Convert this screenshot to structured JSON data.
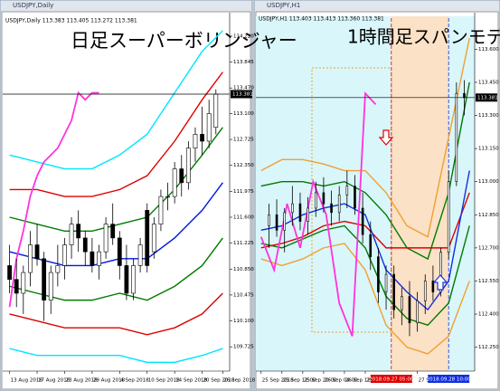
{
  "chart_data": [
    {
      "type": "candlestick",
      "window_title": "USDJPY,Daily",
      "title": "日足スーパーボリンジャー",
      "ohlc_label": "USDJPY,Daily  113.383 113.405 113.272 113.381",
      "ylim": [
        109.4,
        114.35
      ],
      "yticks": [
        {
          "value": 114.22,
          "label": "114.220"
        },
        {
          "value": 113.845,
          "label": "113.845"
        },
        {
          "value": 113.47,
          "label": "113.470"
        },
        {
          "value": 113.1,
          "label": "113.100"
        },
        {
          "value": 112.725,
          "label": "112.725"
        },
        {
          "value": 112.35,
          "label": "112.350"
        },
        {
          "value": 111.975,
          "label": "111.975"
        },
        {
          "value": 111.6,
          "label": "111.600"
        },
        {
          "value": 111.225,
          "label": "111.225"
        },
        {
          "value": 110.85,
          "label": "110.850"
        },
        {
          "value": 110.475,
          "label": "110.475"
        },
        {
          "value": 110.1,
          "label": "110.100"
        },
        {
          "value": 109.725,
          "label": "109.725"
        }
      ],
      "xlim": [
        -1,
        32
      ],
      "xticks": [
        {
          "value": 0,
          "label": "13 Aug 2018"
        },
        {
          "value": 4,
          "label": "17 Aug 2018"
        },
        {
          "value": 8,
          "label": "23 Aug 2018"
        },
        {
          "value": 12,
          "label": "29 Aug 2018"
        },
        {
          "value": 16,
          "label": "4 Sep 2018"
        },
        {
          "value": 20,
          "label": "10 Sep 2018"
        },
        {
          "value": 24,
          "label": "14 Sep 2018"
        },
        {
          "value": 28,
          "label": "20 Sep 2018"
        },
        {
          "value": 31,
          "label": "26 Sep 2018"
        }
      ],
      "current_price": 113.381,
      "candles": {
        "x": [
          0,
          1,
          2,
          3,
          4,
          5,
          6,
          7,
          8,
          9,
          10,
          11,
          12,
          13,
          14,
          15,
          16,
          17,
          18,
          19,
          20,
          21,
          22,
          23,
          24,
          25,
          26,
          27,
          28,
          29,
          30
        ],
        "open": [
          110.9,
          110.7,
          110.5,
          110.8,
          111.2,
          111.0,
          110.4,
          110.8,
          110.9,
          111.2,
          111.5,
          111.3,
          111.1,
          110.9,
          111.1,
          111.5,
          111.3,
          110.9,
          110.5,
          110.9,
          111.7,
          111.1,
          111.5,
          111.9,
          111.9,
          112.3,
          112.1,
          112.6,
          112.8,
          112.7,
          112.9
        ],
        "high": [
          111.2,
          111.0,
          110.9,
          111.4,
          111.5,
          111.1,
          110.9,
          111.2,
          111.3,
          111.6,
          111.7,
          111.4,
          111.3,
          111.2,
          111.6,
          111.8,
          111.4,
          111.2,
          111.0,
          111.3,
          111.8,
          111.6,
          112.0,
          112.1,
          112.4,
          112.5,
          112.7,
          112.9,
          113.2,
          113.3,
          113.45
        ],
        "low": [
          110.5,
          110.3,
          110.2,
          110.6,
          110.9,
          110.1,
          110.2,
          110.6,
          110.7,
          111.0,
          111.1,
          110.9,
          110.8,
          110.7,
          111.0,
          111.2,
          110.7,
          110.4,
          110.4,
          110.8,
          110.8,
          111.0,
          111.4,
          111.7,
          111.8,
          111.9,
          112.0,
          112.4,
          112.5,
          112.6,
          112.8
        ],
        "close": [
          110.7,
          110.5,
          110.8,
          111.2,
          111.0,
          110.4,
          110.8,
          110.9,
          111.2,
          111.5,
          111.3,
          111.1,
          110.9,
          111.1,
          111.5,
          111.3,
          110.9,
          110.5,
          110.9,
          111.2,
          110.9,
          111.5,
          111.9,
          111.9,
          112.3,
          112.1,
          112.6,
          112.8,
          112.7,
          113.1,
          113.38
        ]
      },
      "series": [
        {
          "color": "#00e5ff",
          "x": [
            0,
            4,
            8,
            12,
            16,
            20,
            24,
            28,
            31
          ],
          "values": [
            112.5,
            112.4,
            112.3,
            112.3,
            112.5,
            112.8,
            113.4,
            114.0,
            114.3
          ]
        },
        {
          "color": "#e00000",
          "x": [
            0,
            4,
            8,
            12,
            16,
            20,
            24,
            28,
            31
          ],
          "values": [
            112.0,
            112.0,
            111.9,
            111.9,
            112.0,
            112.2,
            112.7,
            113.3,
            113.7
          ]
        },
        {
          "color": "#007a00",
          "x": [
            0,
            4,
            8,
            12,
            16,
            20,
            24,
            28,
            31
          ],
          "values": [
            111.6,
            111.5,
            111.4,
            111.4,
            111.5,
            111.6,
            112.0,
            112.5,
            112.9
          ]
        },
        {
          "color": "#0018e0",
          "x": [
            0,
            4,
            8,
            12,
            16,
            20,
            24,
            28,
            31
          ],
          "values": [
            111.1,
            111.0,
            110.9,
            110.9,
            111.0,
            111.0,
            111.3,
            111.7,
            112.1
          ]
        },
        {
          "color": "#007a00",
          "x": [
            0,
            4,
            8,
            12,
            16,
            20,
            24,
            28,
            31
          ],
          "values": [
            110.6,
            110.5,
            110.4,
            110.4,
            110.5,
            110.4,
            110.6,
            110.9,
            111.3
          ]
        },
        {
          "color": "#e00000",
          "x": [
            0,
            4,
            8,
            12,
            16,
            20,
            24,
            28,
            31
          ],
          "values": [
            110.2,
            110.1,
            110.0,
            110.0,
            110.0,
            109.9,
            110.0,
            110.2,
            110.5
          ]
        },
        {
          "color": "#00e5ff",
          "x": [
            0,
            4,
            8,
            12,
            16,
            20,
            24,
            28,
            31
          ],
          "values": [
            109.7,
            109.6,
            109.6,
            109.6,
            109.6,
            109.5,
            109.5,
            109.6,
            109.7
          ]
        },
        {
          "color": "#ff33dd",
          "x": [
            0,
            1,
            2,
            3,
            4,
            5,
            6,
            7,
            8,
            9,
            10,
            11,
            12,
            13
          ],
          "values": [
            110.3,
            111.0,
            111.4,
            111.9,
            112.2,
            112.4,
            112.5,
            112.6,
            112.8,
            113.0,
            113.4,
            113.3,
            113.4,
            113.4
          ]
        }
      ]
    },
    {
      "type": "candlestick",
      "window_title": "USDJPY,H1",
      "title": "1時間足スパンモデル",
      "ohlc_label": "USDJPY,H1  113.403 113.413 113.360 113.381",
      "ylim": [
        112.15,
        113.7
      ],
      "yticks": [
        {
          "value": 113.6,
          "label": "113.600"
        },
        {
          "value": 113.45,
          "label": "113.450"
        },
        {
          "value": 113.3,
          "label": "113.300"
        },
        {
          "value": 113.15,
          "label": "113.150"
        },
        {
          "value": 113.0,
          "label": "113.000"
        },
        {
          "value": 112.85,
          "label": "112.850"
        },
        {
          "value": 112.7,
          "label": "112.700"
        },
        {
          "value": 112.55,
          "label": "112.550"
        },
        {
          "value": 112.4,
          "label": "112.400"
        },
        {
          "value": 112.25,
          "label": "112.250"
        }
      ],
      "xlim": [
        -2,
        82
      ],
      "xticks": [
        {
          "value": 0,
          "label": "25 Sep 2018"
        },
        {
          "value": 8,
          "label": "25 Sep 12:00"
        },
        {
          "value": 16,
          "label": "25 Sep 20:00"
        },
        {
          "value": 24,
          "label": "26 Sep 04:00"
        },
        {
          "value": 32,
          "label": "26 Sep 12:00"
        },
        {
          "value": 40,
          "label": "26 Sep 20:00"
        },
        {
          "value": 60,
          "label": "27 Sep 20:00"
        }
      ],
      "markers": [
        {
          "x": 50,
          "label": "2018.09.27 05:00",
          "color": "#e00000"
        },
        {
          "x": 72,
          "label": "2018.09.28 10:00",
          "color": "#1030e0"
        }
      ],
      "current_price": 113.381,
      "candles": {
        "x": [
          3,
          6,
          9,
          12,
          15,
          18,
          21,
          24,
          27,
          30,
          33,
          36,
          39,
          42,
          45,
          48,
          51,
          54,
          57,
          60,
          63,
          66,
          69,
          72,
          75,
          78
        ],
        "open": [
          112.8,
          112.85,
          112.78,
          112.86,
          112.9,
          112.82,
          112.88,
          112.95,
          112.9,
          112.86,
          112.94,
          112.98,
          112.88,
          112.76,
          112.66,
          112.5,
          112.58,
          112.42,
          112.48,
          112.36,
          112.46,
          112.55,
          112.5,
          112.68,
          113.0,
          113.4
        ],
        "high": [
          112.9,
          112.92,
          112.88,
          112.98,
          112.95,
          112.93,
          113.0,
          113.02,
          112.96,
          112.98,
          113.05,
          113.03,
          112.95,
          112.82,
          112.7,
          112.62,
          112.62,
          112.52,
          112.55,
          112.5,
          112.58,
          112.62,
          112.7,
          113.05,
          113.45,
          113.46
        ],
        "low": [
          112.7,
          112.75,
          112.68,
          112.8,
          112.78,
          112.76,
          112.84,
          112.86,
          112.8,
          112.82,
          112.88,
          112.85,
          112.72,
          112.6,
          112.45,
          112.42,
          112.38,
          112.35,
          112.3,
          112.32,
          112.4,
          112.46,
          112.48,
          112.65,
          112.98,
          113.3
        ],
        "close": [
          112.85,
          112.78,
          112.86,
          112.9,
          112.82,
          112.88,
          112.95,
          112.9,
          112.86,
          112.94,
          112.98,
          112.88,
          112.76,
          112.66,
          112.5,
          112.58,
          112.42,
          112.48,
          112.36,
          112.46,
          112.55,
          112.5,
          112.68,
          113.0,
          113.4,
          113.38
        ]
      },
      "series": [
        {
          "color": "#f0a030",
          "x": [
            0,
            8,
            16,
            24,
            32,
            40,
            48,
            56,
            64,
            72,
            80
          ],
          "values": [
            113.05,
            113.1,
            113.1,
            113.08,
            113.05,
            113.05,
            112.95,
            112.8,
            112.75,
            113.2,
            113.65
          ]
        },
        {
          "color": "#f0a030",
          "x": [
            0,
            8,
            16,
            24,
            32,
            40,
            48,
            56,
            64,
            72,
            80
          ],
          "values": [
            112.65,
            112.62,
            112.65,
            112.7,
            112.72,
            112.6,
            112.35,
            112.25,
            112.22,
            112.3,
            112.55
          ]
        },
        {
          "color": "#007a00",
          "x": [
            0,
            8,
            16,
            24,
            32,
            40,
            48,
            56,
            64,
            72,
            80
          ],
          "values": [
            112.98,
            113.0,
            113.0,
            112.98,
            113.0,
            112.95,
            112.85,
            112.7,
            112.65,
            112.95,
            113.45
          ]
        },
        {
          "color": "#007a00",
          "x": [
            0,
            8,
            16,
            24,
            32,
            40,
            48,
            56,
            64,
            72,
            80
          ],
          "values": [
            112.72,
            112.7,
            112.74,
            112.78,
            112.8,
            112.7,
            112.48,
            112.38,
            112.35,
            112.45,
            112.8
          ]
        },
        {
          "color": "#e00000",
          "x": [
            0,
            8,
            16,
            24,
            32,
            40,
            48,
            56,
            64,
            72,
            80
          ],
          "values": [
            112.7,
            112.72,
            112.75,
            112.8,
            112.82,
            112.8,
            112.7,
            112.7,
            112.7,
            112.7,
            112.95
          ]
        },
        {
          "color": "#1030e0",
          "x": [
            0,
            8,
            16,
            24,
            32,
            40,
            48,
            56,
            64,
            72,
            80
          ],
          "values": [
            112.78,
            112.8,
            112.85,
            112.88,
            112.9,
            112.85,
            112.6,
            112.5,
            112.42,
            112.55,
            113.05
          ]
        },
        {
          "color": "#ff33dd",
          "x": [
            0,
            5,
            10,
            15,
            20,
            25,
            30,
            35,
            40,
            44
          ],
          "values": [
            112.75,
            112.6,
            112.9,
            112.7,
            113.0,
            112.85,
            112.45,
            112.3,
            113.4,
            113.35
          ]
        }
      ]
    }
  ]
}
